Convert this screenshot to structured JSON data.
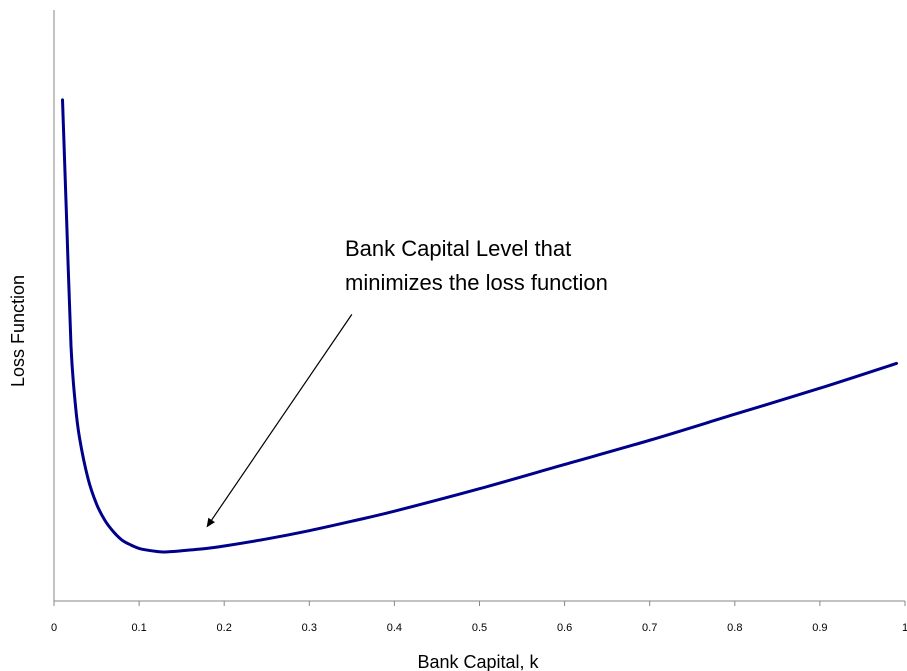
{
  "chart_data": {
    "type": "line",
    "title": "",
    "xlabel": "Bank Capital, k",
    "ylabel": "Loss Function",
    "xlim": [
      0,
      1
    ],
    "ylim": [
      0,
      10
    ],
    "xticks": [
      0,
      0.1,
      0.2,
      0.3,
      0.4,
      0.5,
      0.6,
      0.7,
      0.8,
      0.9,
      1
    ],
    "xtick_labels": [
      "0",
      "0.1",
      "0.2",
      "0.3",
      "0.4",
      "0.5",
      "0.6",
      "0.7",
      "0.8",
      "0.9",
      "1"
    ],
    "y_tick_labels_shown": false,
    "grid": false,
    "series": [
      {
        "color": "#00008B",
        "points": [
          [
            0.01,
            8.48
          ],
          [
            0.015,
            6.38
          ],
          [
            0.02,
            4.31
          ],
          [
            0.025,
            3.34
          ],
          [
            0.03,
            2.76
          ],
          [
            0.04,
            2.07
          ],
          [
            0.05,
            1.64
          ],
          [
            0.06,
            1.36
          ],
          [
            0.07,
            1.17
          ],
          [
            0.08,
            1.03
          ],
          [
            0.09,
            0.95
          ],
          [
            0.1,
            0.89
          ],
          [
            0.11,
            0.86
          ],
          [
            0.12,
            0.84
          ],
          [
            0.13,
            0.83
          ],
          [
            0.15,
            0.85
          ],
          [
            0.18,
            0.89
          ],
          [
            0.2,
            0.93
          ],
          [
            0.25,
            1.05
          ],
          [
            0.3,
            1.19
          ],
          [
            0.35,
            1.35
          ],
          [
            0.4,
            1.52
          ],
          [
            0.5,
            1.9
          ],
          [
            0.6,
            2.31
          ],
          [
            0.7,
            2.72
          ],
          [
            0.8,
            3.16
          ],
          [
            0.9,
            3.6
          ],
          [
            0.99,
            4.02
          ]
        ]
      }
    ],
    "annotation": {
      "text_lines": [
        "Bank Capital Level that",
        "minimizes the loss function"
      ],
      "arrow_from": [
        0.35,
        4.85
      ],
      "arrow_to": [
        0.18,
        1.26
      ]
    }
  }
}
